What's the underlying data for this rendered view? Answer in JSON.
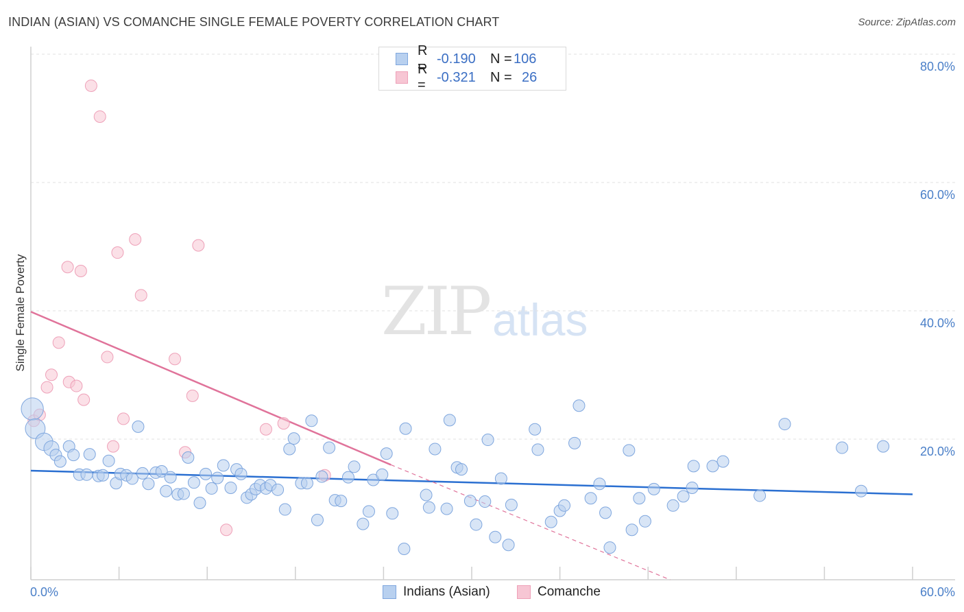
{
  "title": "INDIAN (ASIAN) VS COMANCHE SINGLE FEMALE POVERTY CORRELATION CHART",
  "source": "Source: ZipAtlas.com",
  "watermark": {
    "zip": "ZIP",
    "atlas": "atlas"
  },
  "legend": {
    "series1": {
      "r_label": "R =",
      "r_value": "-0.190",
      "n_label": "N =",
      "n_value": "106"
    },
    "series2": {
      "r_label": "R =",
      "r_value": "-0.321",
      "n_label": "N =",
      "n_value": "26"
    }
  },
  "bottom_legend": {
    "series1": "Indians (Asian)",
    "series2": "Comanche"
  },
  "colors": {
    "blue_fill": "#b8d0ef",
    "blue_stroke": "#7ea6de",
    "blue_line": "#2a6fd1",
    "pink_fill": "#f7c6d4",
    "pink_stroke": "#eea0b8",
    "pink_line": "#e0739a",
    "tick_text": "#4a7fc8",
    "grid": "#e2e2e2"
  },
  "chart_data": {
    "type": "scatter",
    "title": "INDIAN (ASIAN) VS COMANCHE SINGLE FEMALE POVERTY CORRELATION CHART",
    "xlabel": "",
    "ylabel": "Single Female Poverty",
    "xlim": [
      0,
      60
    ],
    "ylim": [
      0,
      80
    ],
    "x_tick_labels": {
      "left": "0.0%",
      "right": "60.0%"
    },
    "y_ticks": [
      {
        "value": 20,
        "label": "20.0%"
      },
      {
        "value": 40,
        "label": "40.0%"
      },
      {
        "value": 60,
        "label": "60.0%"
      },
      {
        "value": 80,
        "label": "80.0%"
      }
    ],
    "series": [
      {
        "name": "Indians (Asian)",
        "color": "blue",
        "points": [
          [
            0.1,
            26.0,
            1.9
          ],
          [
            0.3,
            23.0,
            1.7
          ],
          [
            0.9,
            21.0,
            1.5
          ],
          [
            1.4,
            20.0,
            1.3
          ],
          [
            1.7,
            19.0,
            1.0
          ],
          [
            2.0,
            18.0,
            1.0
          ],
          [
            2.6,
            20.3,
            1.0
          ],
          [
            2.9,
            19.0,
            1.0
          ],
          [
            3.3,
            16.0,
            1.0
          ],
          [
            3.8,
            16.0,
            1.0
          ],
          [
            4.0,
            19.1,
            1.0
          ],
          [
            4.6,
            15.8,
            1.0
          ],
          [
            4.9,
            15.9,
            1.0
          ],
          [
            5.3,
            18.1,
            1.0
          ],
          [
            5.8,
            14.7,
            1.0
          ],
          [
            6.1,
            16.1,
            1.0
          ],
          [
            6.5,
            15.9,
            1.0
          ],
          [
            6.9,
            15.4,
            1.0
          ],
          [
            7.3,
            23.3,
            1.0
          ],
          [
            7.6,
            16.2,
            1.0
          ],
          [
            8.0,
            14.6,
            1.0
          ],
          [
            8.5,
            16.3,
            1.0
          ],
          [
            8.9,
            16.5,
            1.0
          ],
          [
            9.2,
            13.5,
            1.0
          ],
          [
            9.5,
            15.6,
            1.0
          ],
          [
            10.0,
            13.0,
            1.0
          ],
          [
            10.4,
            13.1,
            1.0
          ],
          [
            10.7,
            18.6,
            1.0
          ],
          [
            11.1,
            14.8,
            1.0
          ],
          [
            11.5,
            11.7,
            1.0
          ],
          [
            11.9,
            16.1,
            1.0
          ],
          [
            12.3,
            13.9,
            1.0
          ],
          [
            12.7,
            15.5,
            1.0
          ],
          [
            13.1,
            17.4,
            1.0
          ],
          [
            13.6,
            14.0,
            1.0
          ],
          [
            14.0,
            16.8,
            1.0
          ],
          [
            14.3,
            16.1,
            1.0
          ],
          [
            14.7,
            12.5,
            1.0
          ],
          [
            15.0,
            13.0,
            1.0
          ],
          [
            15.3,
            13.8,
            1.0
          ],
          [
            15.6,
            14.4,
            1.0
          ],
          [
            16.0,
            13.9,
            1.0
          ],
          [
            16.3,
            14.4,
            1.0
          ],
          [
            16.8,
            13.7,
            1.0
          ],
          [
            17.3,
            10.7,
            1.0
          ],
          [
            17.6,
            19.9,
            1.0
          ],
          [
            17.9,
            21.5,
            1.0
          ],
          [
            18.4,
            14.7,
            1.0
          ],
          [
            18.8,
            14.7,
            1.0
          ],
          [
            19.1,
            24.2,
            1.0
          ],
          [
            19.5,
            9.1,
            1.0
          ],
          [
            19.8,
            15.7,
            1.0
          ],
          [
            20.3,
            20.1,
            1.0
          ],
          [
            20.7,
            12.1,
            1.0
          ],
          [
            21.1,
            12.0,
            1.0
          ],
          [
            21.6,
            15.6,
            1.0
          ],
          [
            22.0,
            17.2,
            1.0
          ],
          [
            22.6,
            8.5,
            1.0
          ],
          [
            23.0,
            10.4,
            1.0
          ],
          [
            23.3,
            15.2,
            1.0
          ],
          [
            23.9,
            16.0,
            1.0
          ],
          [
            24.2,
            19.2,
            1.0
          ],
          [
            24.6,
            10.1,
            1.0
          ],
          [
            25.4,
            4.7,
            1.0
          ],
          [
            25.5,
            23.0,
            1.0
          ],
          [
            26.9,
            12.9,
            1.0
          ],
          [
            27.1,
            11.0,
            1.0
          ],
          [
            27.5,
            19.9,
            1.0
          ],
          [
            28.3,
            10.8,
            1.0
          ],
          [
            28.5,
            24.3,
            1.0
          ],
          [
            29.0,
            17.1,
            1.0
          ],
          [
            29.3,
            16.8,
            1.0
          ],
          [
            29.9,
            12.0,
            1.0
          ],
          [
            30.3,
            8.4,
            1.0
          ],
          [
            30.9,
            11.9,
            1.0
          ],
          [
            31.1,
            21.3,
            1.0
          ],
          [
            31.6,
            6.5,
            1.0
          ],
          [
            32.0,
            15.4,
            1.0
          ],
          [
            32.5,
            5.3,
            1.0
          ],
          [
            32.7,
            11.4,
            1.0
          ],
          [
            34.3,
            22.9,
            1.0
          ],
          [
            34.5,
            19.8,
            1.0
          ],
          [
            35.4,
            8.8,
            1.0
          ],
          [
            36.0,
            10.5,
            1.0
          ],
          [
            36.3,
            11.3,
            1.0
          ],
          [
            37.0,
            20.8,
            1.0
          ],
          [
            37.3,
            26.5,
            1.0
          ],
          [
            38.1,
            12.4,
            1.0
          ],
          [
            38.7,
            14.6,
            1.0
          ],
          [
            39.1,
            10.2,
            1.0
          ],
          [
            39.4,
            4.9,
            1.0
          ],
          [
            40.7,
            19.7,
            1.0
          ],
          [
            40.9,
            7.6,
            1.0
          ],
          [
            41.4,
            12.4,
            1.0
          ],
          [
            41.8,
            8.9,
            1.0
          ],
          [
            42.4,
            13.8,
            1.0
          ],
          [
            43.7,
            11.3,
            1.0
          ],
          [
            44.4,
            12.7,
            1.0
          ],
          [
            45.0,
            14.0,
            1.0
          ],
          [
            45.1,
            17.3,
            1.0
          ],
          [
            46.4,
            17.3,
            1.0
          ],
          [
            47.1,
            18.0,
            1.0
          ],
          [
            49.6,
            12.8,
            1.0
          ],
          [
            51.3,
            23.7,
            1.0
          ],
          [
            55.2,
            20.1,
            1.0
          ],
          [
            56.5,
            13.5,
            1.0
          ],
          [
            58.0,
            20.3,
            1.0
          ]
        ],
        "trend": {
          "x": [
            0,
            60
          ],
          "y": [
            16.6,
            13.0
          ],
          "style": "solid"
        }
      },
      {
        "name": "Comanche",
        "color": "pink",
        "points": [
          [
            0.2,
            24.2,
            1.0
          ],
          [
            0.6,
            25.1,
            1.0
          ],
          [
            1.1,
            29.3,
            1.0
          ],
          [
            1.4,
            31.2,
            1.0
          ],
          [
            1.9,
            36.1,
            1.0
          ],
          [
            2.5,
            47.6,
            1.0
          ],
          [
            2.6,
            30.1,
            1.0
          ],
          [
            3.1,
            29.5,
            1.0
          ],
          [
            3.4,
            47.0,
            1.0
          ],
          [
            3.6,
            27.4,
            1.0
          ],
          [
            4.1,
            75.2,
            1.0
          ],
          [
            4.7,
            70.5,
            1.0
          ],
          [
            5.2,
            33.9,
            1.0
          ],
          [
            5.6,
            20.3,
            1.0
          ],
          [
            5.9,
            49.8,
            1.0
          ],
          [
            6.3,
            24.5,
            1.0
          ],
          [
            7.1,
            51.8,
            1.0
          ],
          [
            7.5,
            43.3,
            1.0
          ],
          [
            9.8,
            33.6,
            1.0
          ],
          [
            10.5,
            19.4,
            1.0
          ],
          [
            11.0,
            28.0,
            1.0
          ],
          [
            11.4,
            50.9,
            1.0
          ],
          [
            13.3,
            7.6,
            1.0
          ],
          [
            16.0,
            22.9,
            1.0
          ],
          [
            17.2,
            23.8,
            1.0
          ],
          [
            20.0,
            15.9,
            1.0
          ]
        ],
        "trend": {
          "x": [
            0,
            24.5
          ],
          "y": [
            40.8,
            17.5
          ],
          "style": "solid",
          "extension": {
            "x": [
              24.5,
              43.5
            ],
            "y": [
              17.5,
              0
            ],
            "style": "dashed"
          }
        }
      }
    ]
  }
}
